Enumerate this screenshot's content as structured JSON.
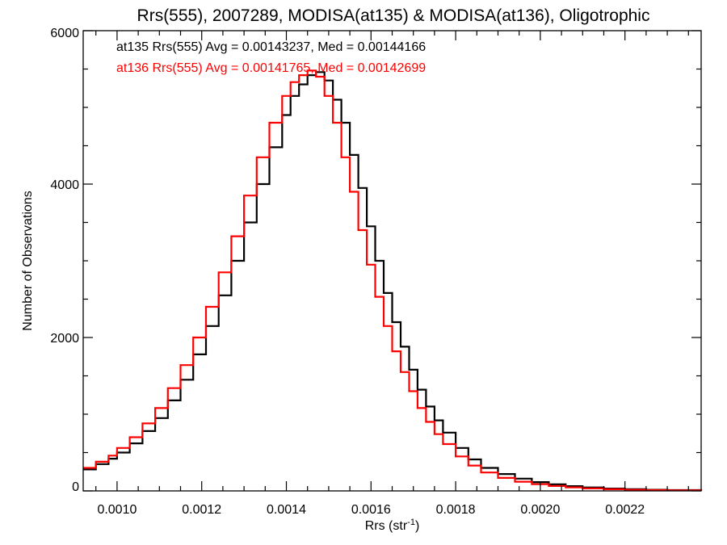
{
  "chart_data": {
    "type": "line",
    "step": true,
    "title": "Rrs(555), 2007289, MODISA(at135) & MODISA(at136), Oligotrophic",
    "xlabel": "Rrs (str",
    "xlabel_sup": "-1",
    "xlabel_close": ")",
    "ylabel": "Number of Observations",
    "xlim": [
      0.00092,
      0.00238
    ],
    "ylim": [
      0,
      6000
    ],
    "x_ticks": [
      0.001,
      0.0012,
      0.0014,
      0.0016,
      0.0018,
      0.002,
      0.0022
    ],
    "x_tick_labels": [
      "0.0010",
      "0.0012",
      "0.0014",
      "0.0016",
      "0.0018",
      "0.0020",
      "0.0022"
    ],
    "y_ticks": [
      0,
      2000,
      4000,
      6000
    ],
    "y_tick_labels": [
      "0",
      "2000",
      "4000",
      "6000"
    ],
    "grid": false,
    "legend_position": "top-left",
    "series": [
      {
        "name": "at135 Rrs(555) Avg = 0.00143237, Med = 0.00144166",
        "color": "#000000",
        "x": [
          0.00092,
          0.00095,
          0.00098,
          0.001,
          0.00103,
          0.00106,
          0.00109,
          0.00112,
          0.00115,
          0.00118,
          0.00121,
          0.00124,
          0.00127,
          0.0013,
          0.00133,
          0.00136,
          0.00139,
          0.00141,
          0.00143,
          0.00145,
          0.00147,
          0.00149,
          0.00151,
          0.00153,
          0.00155,
          0.00157,
          0.00159,
          0.00161,
          0.00163,
          0.00165,
          0.00167,
          0.00169,
          0.00171,
          0.00173,
          0.00175,
          0.00177,
          0.0018,
          0.00183,
          0.00186,
          0.0019,
          0.00194,
          0.00198,
          0.00202,
          0.00206,
          0.0021,
          0.00215,
          0.0022,
          0.00225,
          0.0023,
          0.00238
        ],
        "y": [
          280,
          350,
          420,
          500,
          620,
          780,
          950,
          1180,
          1450,
          1780,
          2150,
          2550,
          3000,
          3500,
          4000,
          4480,
          4900,
          5150,
          5300,
          5420,
          5460,
          5350,
          5100,
          4800,
          4380,
          3950,
          3450,
          3000,
          2580,
          2200,
          1880,
          1580,
          1320,
          1100,
          920,
          760,
          560,
          410,
          300,
          220,
          160,
          115,
          85,
          62,
          45,
          30,
          22,
          15,
          10,
          5
        ]
      },
      {
        "name": "at136 Rrs(555) Avg = 0.00141765, Med = 0.00142699",
        "color": "#ff0000",
        "x": [
          0.00092,
          0.00095,
          0.00098,
          0.001,
          0.00103,
          0.00106,
          0.00109,
          0.00112,
          0.00115,
          0.00118,
          0.00121,
          0.00124,
          0.00127,
          0.0013,
          0.00133,
          0.00136,
          0.00139,
          0.00141,
          0.00143,
          0.00145,
          0.00147,
          0.00149,
          0.00151,
          0.00153,
          0.00155,
          0.00157,
          0.00159,
          0.00161,
          0.00163,
          0.00165,
          0.00167,
          0.00169,
          0.00171,
          0.00173,
          0.00175,
          0.00177,
          0.0018,
          0.00183,
          0.00186,
          0.0019,
          0.00194,
          0.00198,
          0.00202,
          0.00206,
          0.0021,
          0.00215,
          0.0022,
          0.00225,
          0.0023,
          0.00238
        ],
        "y": [
          300,
          380,
          460,
          560,
          700,
          880,
          1080,
          1340,
          1640,
          2000,
          2400,
          2850,
          3320,
          3850,
          4350,
          4800,
          5150,
          5330,
          5420,
          5480,
          5400,
          5150,
          4800,
          4350,
          3900,
          3400,
          2950,
          2530,
          2150,
          1820,
          1550,
          1300,
          1080,
          900,
          740,
          610,
          450,
          330,
          240,
          170,
          120,
          88,
          64,
          46,
          33,
          22,
          15,
          10,
          7,
          3
        ]
      }
    ]
  }
}
